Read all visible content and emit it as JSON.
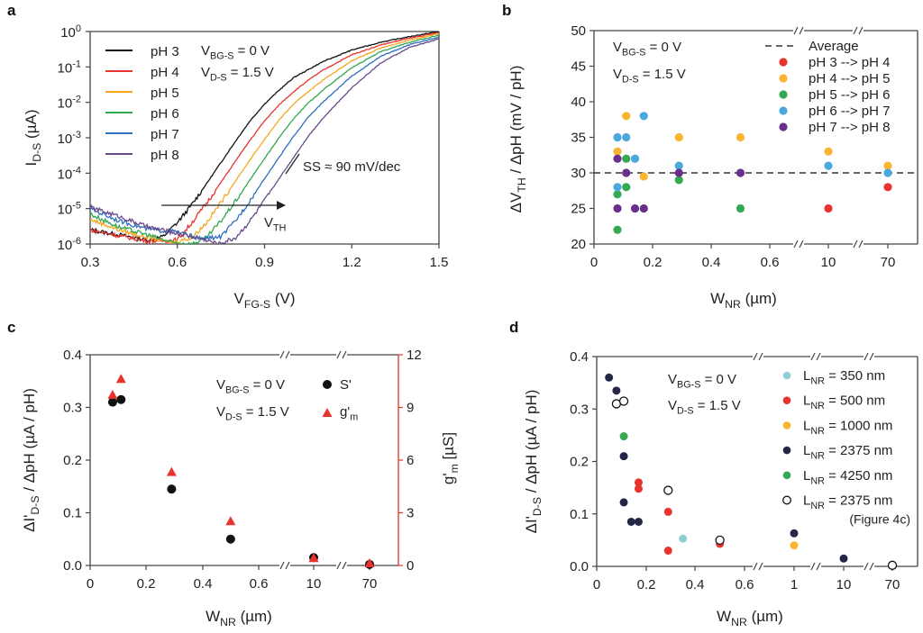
{
  "chart_data": [
    {
      "panel": "a",
      "type": "line",
      "xlabel": "V_FG-S (V)",
      "ylabel": "I_D-S (µA)",
      "xlim": [
        0.3,
        1.5
      ],
      "ylim_log10": [
        -6,
        0
      ],
      "yscale": "log",
      "x_ticks": [
        "0.3",
        "0.6",
        "0.9",
        "1.2",
        "1.5"
      ],
      "y_ticks": [
        {
          "base": "10",
          "exp": "0"
        },
        {
          "base": "10",
          "exp": "-1"
        },
        {
          "base": "10",
          "exp": "-2"
        },
        {
          "base": "10",
          "exp": "-3"
        },
        {
          "base": "10",
          "exp": "-4"
        },
        {
          "base": "10",
          "exp": "-5"
        },
        {
          "base": "10",
          "exp": "-6"
        }
      ],
      "conditions": [
        "V_BG-S = 0 V",
        "V_D-S = 1.5 V"
      ],
      "annotation_ss": "SS ≈ 90 mV/dec",
      "annotation_vth": "V_TH",
      "legend_position": "top-left",
      "series": [
        {
          "name": "pH 3",
          "color": "#111111",
          "vth_shift": 0.0,
          "points": [
            [
              0.3,
              2.5e-06
            ],
            [
              0.4,
              1.8e-06
            ],
            [
              0.5,
              1.3e-06
            ],
            [
              0.55,
              1.6e-06
            ],
            [
              0.6,
              4e-06
            ],
            [
              0.65,
              1.3e-05
            ],
            [
              0.7,
              5e-05
            ],
            [
              0.75,
              0.0002
            ],
            [
              0.8,
              0.0008
            ],
            [
              0.85,
              0.003
            ],
            [
              0.9,
              0.009
            ],
            [
              0.95,
              0.022
            ],
            [
              1.0,
              0.05
            ],
            [
              1.1,
              0.14
            ],
            [
              1.2,
              0.3
            ],
            [
              1.3,
              0.5
            ],
            [
              1.4,
              0.72
            ],
            [
              1.5,
              1.0
            ]
          ]
        },
        {
          "name": "pH 4",
          "color": "#e8332e",
          "vth_shift": 0.03,
          "points": [
            [
              0.3,
              2.5e-06
            ],
            [
              0.4,
              1.7e-06
            ],
            [
              0.5,
              1.2e-06
            ],
            [
              0.6,
              1.3e-06
            ],
            [
              0.65,
              4e-06
            ],
            [
              0.7,
              1.4e-05
            ],
            [
              0.75,
              5.5e-05
            ],
            [
              0.8,
              0.00022
            ],
            [
              0.85,
              0.00085
            ],
            [
              0.9,
              0.003
            ],
            [
              0.95,
              0.0085
            ],
            [
              1.0,
              0.02
            ],
            [
              1.05,
              0.042
            ],
            [
              1.1,
              0.08
            ],
            [
              1.2,
              0.22
            ],
            [
              1.3,
              0.42
            ],
            [
              1.4,
              0.65
            ],
            [
              1.5,
              0.93
            ]
          ]
        },
        {
          "name": "pH 5",
          "color": "#f5a623",
          "vth_shift": 0.06,
          "points": [
            [
              0.3,
              5e-06
            ],
            [
              0.4,
              2.5e-06
            ],
            [
              0.5,
              1.5e-06
            ],
            [
              0.58,
              1.1e-06
            ],
            [
              0.65,
              1.5e-06
            ],
            [
              0.7,
              4e-06
            ],
            [
              0.75,
              1.5e-05
            ],
            [
              0.8,
              6e-05
            ],
            [
              0.85,
              0.00024
            ],
            [
              0.9,
              0.0009
            ],
            [
              0.95,
              0.0032
            ],
            [
              1.0,
              0.009
            ],
            [
              1.05,
              0.02
            ],
            [
              1.1,
              0.042
            ],
            [
              1.2,
              0.15
            ],
            [
              1.3,
              0.34
            ],
            [
              1.4,
              0.58
            ],
            [
              1.5,
              0.86
            ]
          ]
        },
        {
          "name": "pH 6",
          "color": "#2fa84f",
          "vth_shift": 0.09,
          "points": [
            [
              0.3,
              7e-06
            ],
            [
              0.4,
              3e-06
            ],
            [
              0.5,
              1.8e-06
            ],
            [
              0.58,
              1.1e-06
            ],
            [
              0.65,
              1e-06
            ],
            [
              0.7,
              1.5e-06
            ],
            [
              0.75,
              4.5e-06
            ],
            [
              0.8,
              1.6e-05
            ],
            [
              0.85,
              6.5e-05
            ],
            [
              0.9,
              0.00026
            ],
            [
              0.95,
              0.001
            ],
            [
              1.0,
              0.0035
            ],
            [
              1.05,
              0.0095
            ],
            [
              1.1,
              0.022
            ],
            [
              1.2,
              0.095
            ],
            [
              1.3,
              0.27
            ],
            [
              1.4,
              0.5
            ],
            [
              1.5,
              0.78
            ]
          ]
        },
        {
          "name": "pH 7",
          "color": "#2f6fbf",
          "vth_shift": 0.12,
          "points": [
            [
              0.3,
              1e-05
            ],
            [
              0.4,
              4.5e-06
            ],
            [
              0.5,
              2.6e-06
            ],
            [
              0.6,
              2.2e-06
            ],
            [
              0.68,
              1.4e-06
            ],
            [
              0.75,
              1.6e-06
            ],
            [
              0.8,
              4.5e-06
            ],
            [
              0.85,
              1.7e-05
            ],
            [
              0.9,
              7e-05
            ],
            [
              0.95,
              0.00028
            ],
            [
              1.0,
              0.0011
            ],
            [
              1.05,
              0.0038
            ],
            [
              1.1,
              0.01
            ],
            [
              1.2,
              0.055
            ],
            [
              1.3,
              0.2
            ],
            [
              1.4,
              0.43
            ],
            [
              1.5,
              0.7
            ]
          ]
        },
        {
          "name": "pH 8",
          "color": "#6a4a8c",
          "vth_shift": 0.15,
          "points": [
            [
              0.3,
              1.1e-05
            ],
            [
              0.4,
              6e-06
            ],
            [
              0.5,
              3e-06
            ],
            [
              0.6,
              2e-06
            ],
            [
              0.7,
              1.3e-06
            ],
            [
              0.74,
              1e-06
            ],
            [
              0.8,
              1.5e-06
            ],
            [
              0.85,
              4.5e-06
            ],
            [
              0.9,
              1.7e-05
            ],
            [
              0.95,
              7e-05
            ],
            [
              1.0,
              0.00028
            ],
            [
              1.05,
              0.0011
            ],
            [
              1.1,
              0.0035
            ],
            [
              1.2,
              0.026
            ],
            [
              1.3,
              0.13
            ],
            [
              1.4,
              0.36
            ],
            [
              1.5,
              0.62
            ]
          ]
        }
      ]
    },
    {
      "panel": "b",
      "type": "scatter",
      "xlabel": "W_NR (µm)",
      "ylabel": "ΔV_TH / ΔpH (mV / pH)",
      "ylim": [
        20,
        50
      ],
      "y_ticks": [
        "20",
        "25",
        "30",
        "35",
        "40",
        "45",
        "50"
      ],
      "x_ticks": [
        "0",
        "0.2",
        "0.4",
        "0.6",
        "10",
        "70"
      ],
      "x_axis_breaks": true,
      "conditions": [
        "V_BG-S = 0 V",
        "V_D-S = 1.5 V"
      ],
      "average": {
        "label": "Average",
        "value": 30
      },
      "legend_position": "top-right",
      "series": [
        {
          "name": "pH 3 --> pH 4",
          "color": "#e8332e",
          "points": [
            [
              10,
              25
            ],
            [
              70,
              28
            ]
          ]
        },
        {
          "name": "pH 4 --> pH 5",
          "color": "#fbb432",
          "points": [
            [
              0.08,
              33
            ],
            [
              0.11,
              38
            ],
            [
              0.17,
              29.5
            ],
            [
              0.29,
              35
            ],
            [
              0.5,
              35
            ],
            [
              10,
              33
            ],
            [
              70,
              31
            ]
          ]
        },
        {
          "name": "pH 5 --> pH 6",
          "color": "#35a852",
          "points": [
            [
              0.08,
              27
            ],
            [
              0.08,
              22
            ],
            [
              0.11,
              32
            ],
            [
              0.11,
              28
            ],
            [
              0.29,
              29
            ],
            [
              0.5,
              25
            ]
          ]
        },
        {
          "name": "pH 6 --> pH 7",
          "color": "#4aa8dc",
          "points": [
            [
              0.08,
              35
            ],
            [
              0.08,
              28
            ],
            [
              0.11,
              35
            ],
            [
              0.14,
              32
            ],
            [
              0.17,
              38
            ],
            [
              0.29,
              31
            ],
            [
              10,
              31
            ],
            [
              70,
              30
            ]
          ]
        },
        {
          "name": "pH 7 --> pH 8",
          "color": "#6a2e8c",
          "points": [
            [
              0.08,
              32
            ],
            [
              0.08,
              25
            ],
            [
              0.11,
              30
            ],
            [
              0.14,
              25
            ],
            [
              0.17,
              25
            ],
            [
              0.29,
              30
            ],
            [
              0.5,
              30
            ]
          ]
        }
      ]
    },
    {
      "panel": "c",
      "type": "scatter",
      "xlabel": "W_NR (µm)",
      "ylabel": "ΔI'_D-S / ΔpH (µA / pH)",
      "ylabel_right": "g'_m [µS]",
      "ylim": [
        0,
        0.4
      ],
      "ylim_right": [
        0,
        12
      ],
      "y_ticks": [
        "0.0",
        "0.1",
        "0.2",
        "0.3",
        "0.4"
      ],
      "y_ticks_right": [
        "0",
        "3",
        "6",
        "9",
        "12"
      ],
      "x_ticks": [
        "0",
        "0.2",
        "0.4",
        "0.6",
        "10",
        "70"
      ],
      "x_axis_breaks": true,
      "conditions": [
        "V_BG-S = 0 V",
        "V_D-S = 1.5 V"
      ],
      "legend_position": "top-right",
      "right_axis_color": "#e8332e",
      "series": [
        {
          "name": "S'",
          "marker": "circle",
          "color": "#111111",
          "axis": "left",
          "points": [
            [
              0.08,
              0.31
            ],
            [
              0.11,
              0.315
            ],
            [
              0.29,
              0.145
            ],
            [
              0.5,
              0.05
            ],
            [
              10,
              0.015
            ],
            [
              70,
              0.002
            ]
          ]
        },
        {
          "name": "g'_m",
          "marker": "triangle",
          "color": "#e8332e",
          "axis": "right",
          "points": [
            [
              0.08,
              9.7
            ],
            [
              0.11,
              10.6
            ],
            [
              0.29,
              5.3
            ],
            [
              0.5,
              2.5
            ],
            [
              10,
              0.4
            ],
            [
              70,
              0.1
            ]
          ]
        }
      ]
    },
    {
      "panel": "d",
      "type": "scatter",
      "xlabel": "W_NR (µm)",
      "ylabel": "ΔI'_D-S / ΔpH (µA / pH)",
      "ylim": [
        0,
        0.4
      ],
      "y_ticks": [
        "0.0",
        "0.1",
        "0.2",
        "0.3",
        "0.4"
      ],
      "x_ticks": [
        "0",
        "0.2",
        "0.4",
        "0.6",
        "1",
        "10",
        "70"
      ],
      "x_axis_breaks": true,
      "conditions": [
        "V_BG-S = 0 V",
        "V_D-S = 1.5 V"
      ],
      "legend_position": "top-right",
      "series": [
        {
          "name": "L_NR = 350 nm",
          "color": "#8ecfd6",
          "marker": "circle",
          "points": [
            [
              0.35,
              0.053
            ]
          ]
        },
        {
          "name": "L_NR = 500 nm",
          "color": "#e8332e",
          "marker": "circle",
          "points": [
            [
              0.17,
              0.16
            ],
            [
              0.17,
              0.148
            ],
            [
              0.29,
              0.104
            ],
            [
              0.29,
              0.03
            ],
            [
              0.5,
              0.043
            ]
          ]
        },
        {
          "name": "L_NR = 1000 nm",
          "color": "#fbb432",
          "marker": "circle",
          "points": [
            [
              1,
              0.04
            ]
          ]
        },
        {
          "name": "L_NR = 2375 nm",
          "color": "#252548",
          "marker": "circle",
          "points": [
            [
              0.05,
              0.36
            ],
            [
              0.08,
              0.335
            ],
            [
              0.11,
              0.21
            ],
            [
              0.11,
              0.122
            ],
            [
              0.14,
              0.085
            ],
            [
              0.17,
              0.085
            ],
            [
              1,
              0.063
            ],
            [
              10,
              0.015
            ]
          ]
        },
        {
          "name": "L_NR = 4250 nm",
          "color": "#35a852",
          "marker": "circle",
          "points": [
            [
              0.11,
              0.248
            ]
          ]
        },
        {
          "name": "L_NR = 2375 nm",
          "note": "(Figure 4c)",
          "color": "#111111",
          "marker": "open-circle",
          "points": [
            [
              0.08,
              0.31
            ],
            [
              0.11,
              0.315
            ],
            [
              0.29,
              0.145
            ],
            [
              0.5,
              0.05
            ],
            [
              70,
              0.002
            ]
          ]
        }
      ]
    }
  ]
}
